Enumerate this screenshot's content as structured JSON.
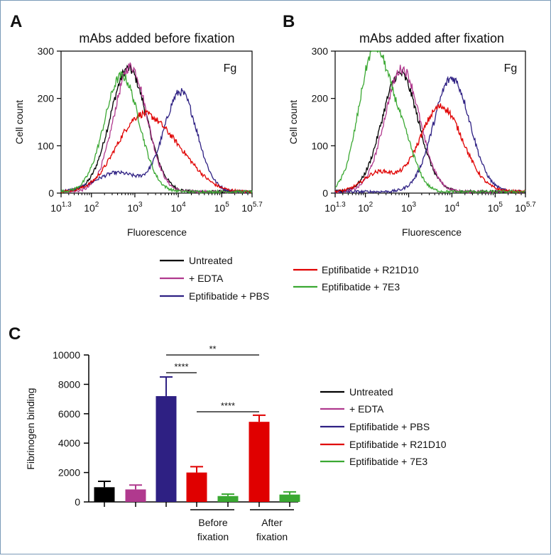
{
  "panels": {
    "a_letter": "A",
    "b_letter": "B",
    "c_letter": "C"
  },
  "colors": {
    "untreated": "#000000",
    "edta": "#b0398e",
    "pbs": "#2e2083",
    "r21d10": "#e00000",
    "e3": "#3aa832"
  },
  "legend_top": {
    "untreated": "Untreated",
    "edta": "+ EDTA",
    "pbs": "Eptifibatide + PBS",
    "r21d10": "Eptifibatide + R21D10",
    "e3": "Eptifibatide + 7E3"
  },
  "legend_c": {
    "untreated": "Untreated",
    "edta": "+ EDTA",
    "pbs": "Eptifibatide + PBS",
    "r21d10": "Eptifibatide + R21D10",
    "e3": "Eptifibatide + 7E3"
  },
  "group_labels": {
    "before_1": "Before",
    "before_2": "fixation",
    "after_1": "After",
    "after_2": "fixation"
  },
  "chart_data": [
    {
      "type": "line",
      "panel": "A",
      "title": "mAbs added before fixation",
      "annotation": "Fg",
      "xlabel": "Fluorescence",
      "ylabel": "Cell count",
      "xscale": "log10",
      "xlim": [
        1.3,
        5.7
      ],
      "ylim": [
        0,
        300
      ],
      "xtick_labels": [
        {
          "base": "10",
          "exp": "1.3"
        },
        {
          "base": "10",
          "exp": "2"
        },
        {
          "base": "10",
          "exp": "3"
        },
        {
          "base": "10",
          "exp": "4"
        },
        {
          "base": "10",
          "exp": "5"
        },
        {
          "base": "10",
          "exp": "5.7"
        }
      ],
      "ytick_labels": [
        "0",
        "100",
        "200",
        "300"
      ],
      "series": [
        {
          "key": "untreated",
          "peaks": [
            {
              "log_x": 2.85,
              "y": 260,
              "width": 0.42
            }
          ]
        },
        {
          "key": "edta",
          "peaks": [
            {
              "log_x": 2.9,
              "y": 265,
              "width": 0.38
            }
          ]
        },
        {
          "key": "pbs",
          "peaks": [
            {
              "log_x": 4.05,
              "y": 210,
              "width": 0.38
            },
            {
              "log_x": 2.6,
              "y": 40,
              "width": 0.5
            }
          ]
        },
        {
          "key": "r21d10",
          "peaks": [
            {
              "log_x": 3.1,
              "y": 150,
              "width": 0.55
            },
            {
              "log_x": 4.0,
              "y": 60,
              "width": 0.5
            }
          ]
        },
        {
          "key": "e3",
          "peaks": [
            {
              "log_x": 2.7,
              "y": 245,
              "width": 0.4
            }
          ]
        }
      ]
    },
    {
      "type": "line",
      "panel": "B",
      "title": "mAbs added after fixation",
      "annotation": "Fg",
      "xlabel": "Fluorescence",
      "ylabel": "Cell count",
      "xscale": "log10",
      "xlim": [
        1.3,
        5.7
      ],
      "ylim": [
        0,
        300
      ],
      "xtick_labels": [
        {
          "base": "10",
          "exp": "1.3"
        },
        {
          "base": "10",
          "exp": "2"
        },
        {
          "base": "10",
          "exp": "3"
        },
        {
          "base": "10",
          "exp": "4"
        },
        {
          "base": "10",
          "exp": "5"
        },
        {
          "base": "10",
          "exp": "5.7"
        }
      ],
      "ytick_labels": [
        "0",
        "100",
        "200",
        "300"
      ],
      "series": [
        {
          "key": "untreated",
          "peaks": [
            {
              "log_x": 2.8,
              "y": 250,
              "width": 0.42
            }
          ]
        },
        {
          "key": "edta",
          "peaks": [
            {
              "log_x": 2.85,
              "y": 260,
              "width": 0.4
            }
          ]
        },
        {
          "key": "pbs",
          "peaks": [
            {
              "log_x": 4.0,
              "y": 240,
              "width": 0.42
            }
          ]
        },
        {
          "key": "r21d10",
          "peaks": [
            {
              "log_x": 3.75,
              "y": 180,
              "width": 0.5
            },
            {
              "log_x": 2.3,
              "y": 40,
              "width": 0.35
            }
          ]
        },
        {
          "key": "e3",
          "peaks": [
            {
              "log_x": 2.2,
              "y": 295,
              "width": 0.35
            },
            {
              "log_x": 2.85,
              "y": 100,
              "width": 0.3
            }
          ]
        }
      ]
    },
    {
      "type": "bar",
      "panel": "C",
      "xlabel": "",
      "ylabel": "Fibrinogen binding",
      "ylim": [
        0,
        10000
      ],
      "ytick_labels": [
        "0",
        "2000",
        "4000",
        "6000",
        "8000",
        "10000"
      ],
      "bars": [
        {
          "key": "untreated",
          "value": 1000,
          "error": 400
        },
        {
          "key": "edta",
          "value": 850,
          "error": 300
        },
        {
          "key": "pbs",
          "value": 7200,
          "error": 1300
        },
        {
          "key": "r21d10",
          "value": 2000,
          "error": 400
        },
        {
          "key": "e3",
          "value": 400,
          "error": 130
        },
        {
          "key": "r21d10",
          "value": 5450,
          "error": 450
        },
        {
          "key": "e3",
          "value": 500,
          "error": 180
        }
      ],
      "significance": [
        {
          "from": 2,
          "to": 3,
          "label": "****"
        },
        {
          "from": 2,
          "to": 5,
          "label": "**"
        },
        {
          "from": 3,
          "to": 5,
          "label": "****"
        }
      ]
    }
  ]
}
